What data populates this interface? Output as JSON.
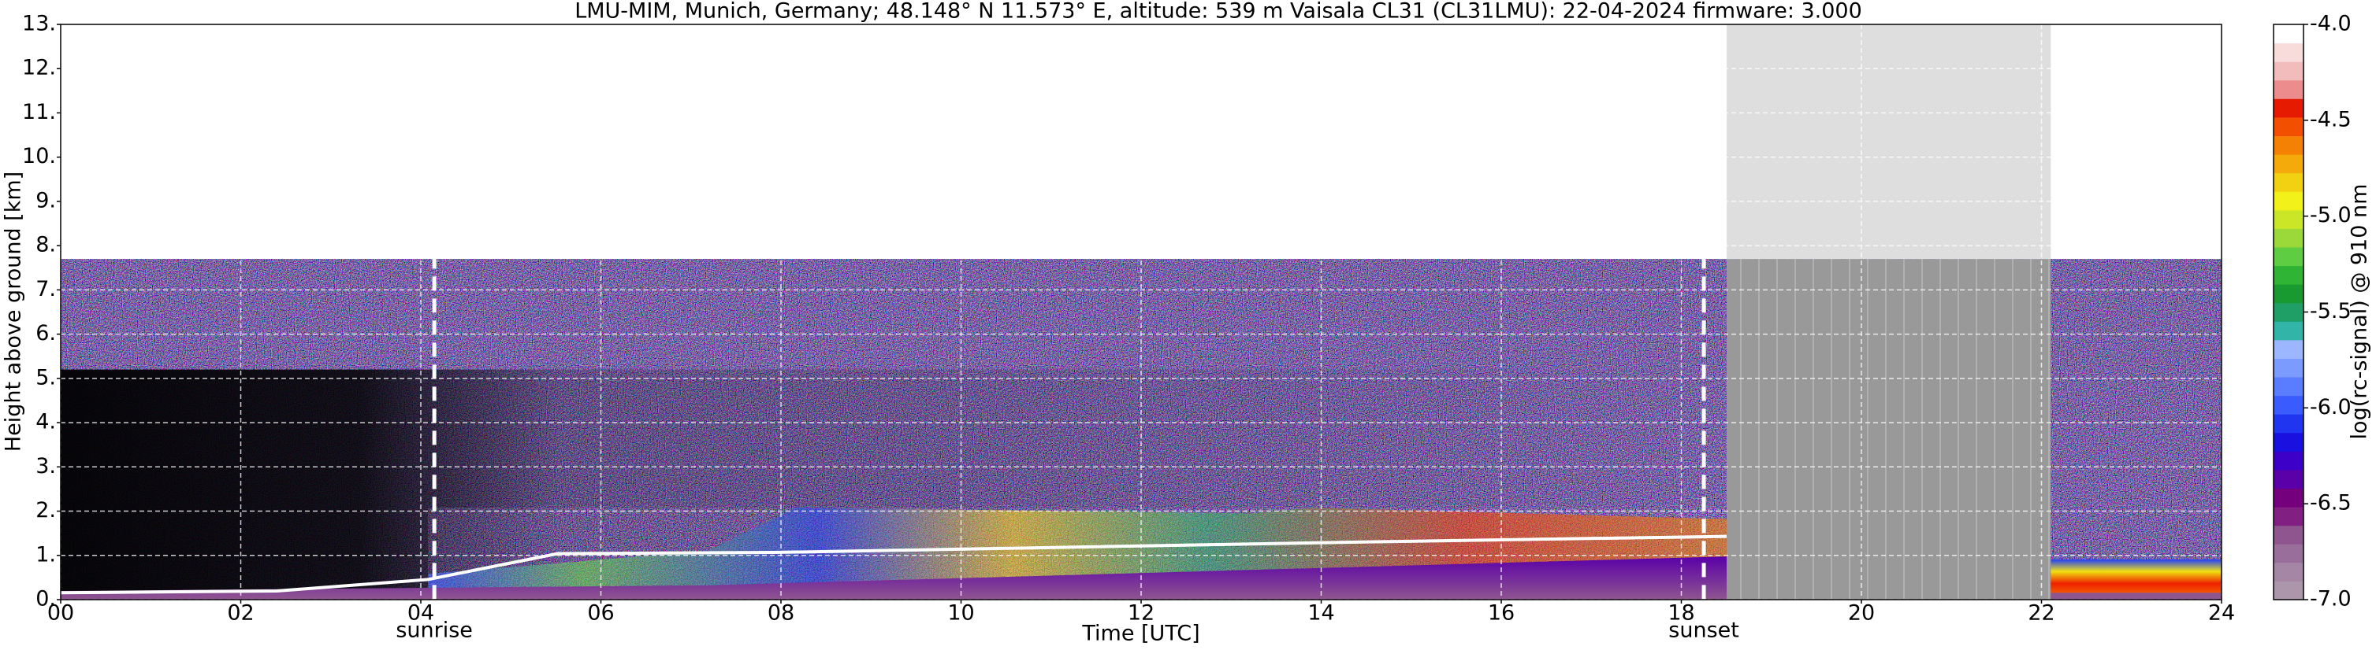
{
  "chart_data": {
    "type": "heatmap",
    "title": "LMU-MIM, Munich, Germany; 48.148° N 11.573° E, altitude: 539 m    Vaisala CL31 (CL31LMU): 22-04-2024    firmware: 3.000",
    "xlabel": "Time [UTC]",
    "ylabel": "Height above ground [km]",
    "xlim": [
      0,
      24
    ],
    "xticks": [
      {
        "value": 0,
        "label": "00"
      },
      {
        "value": 2,
        "label": "02"
      },
      {
        "value": 4,
        "label": "04"
      },
      {
        "value": 6,
        "label": "06"
      },
      {
        "value": 8,
        "label": "08"
      },
      10,
      12,
      14,
      16,
      18,
      20,
      22,
      24
    ],
    "ylim": [
      0,
      13
    ],
    "yticks": [
      {
        "value": 0,
        "label": "0."
      },
      {
        "value": 1,
        "label": "1."
      },
      {
        "value": 2,
        "label": "2."
      },
      {
        "value": 3,
        "label": "3."
      },
      {
        "value": 4,
        "label": "4."
      },
      {
        "value": 5,
        "label": "5."
      },
      {
        "value": 6,
        "label": "6."
      },
      {
        "value": 7,
        "label": "7."
      },
      {
        "value": 8,
        "label": "8."
      },
      {
        "value": 9,
        "label": "9."
      },
      {
        "value": 10,
        "label": "10."
      },
      {
        "value": 11,
        "label": "11."
      },
      {
        "value": 12,
        "label": "12."
      },
      {
        "value": 13,
        "label": "13."
      }
    ],
    "grid": true,
    "annotations": [
      {
        "text": "sunrise",
        "x": 4.15
      },
      {
        "text": "sunset",
        "x": 18.25
      }
    ],
    "colorbar": {
      "label": "log(rc-signal) @ 910 nm",
      "lim": [
        -7,
        -4
      ],
      "ticks": [
        {
          "value": -4,
          "label": "-4.0"
        },
        -4.5,
        {
          "value": -5,
          "label": "-5.0"
        },
        -5.5,
        {
          "value": -6,
          "label": "-6.0"
        },
        -6.5,
        {
          "value": -7,
          "label": "-7.0"
        }
      ],
      "colors": [
        "#ab96ab",
        "#a586a5",
        "#9a6e9a",
        "#8f558f",
        "#821f82",
        "#74007e",
        "#5a00a8",
        "#3c00c8",
        "#1a10e0",
        "#2035f0",
        "#3a5cff",
        "#5a7cff",
        "#7b9bff",
        "#9cb6ff",
        "#32b4a8",
        "#1f9f66",
        "#199a30",
        "#2fb436",
        "#5fcd41",
        "#9ad939",
        "#cbe626",
        "#f2f21a",
        "#f2d012",
        "#f4aa0a",
        "#f48004",
        "#f25000",
        "#e61a00",
        "#ec8c8c",
        "#f2bcbc",
        "#f8dcdc",
        "#ffffff"
      ]
    }
  }
}
